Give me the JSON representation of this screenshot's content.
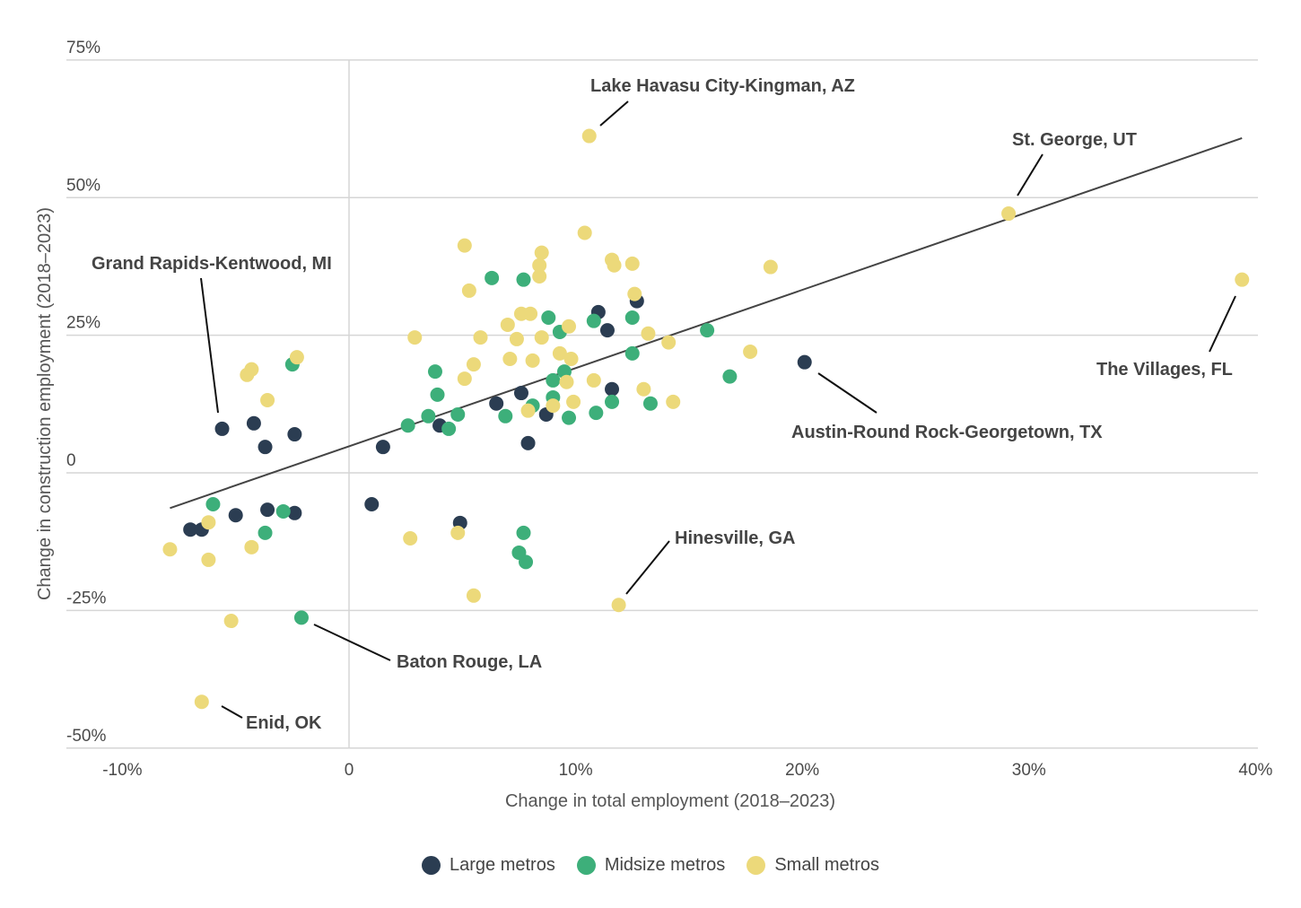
{
  "chart_data": {
    "type": "scatter",
    "title": "",
    "xlabel": "Change in total employment (2018–2023)",
    "ylabel": "Change in construction employment (2018–2023)",
    "xlim": [
      -10,
      40
    ],
    "ylim": [
      -50,
      75
    ],
    "x_ticks": [
      {
        "value": -10,
        "label": "-10%"
      },
      {
        "value": 0,
        "label": "0"
      },
      {
        "value": 10,
        "label": "10%"
      },
      {
        "value": 20,
        "label": "20%"
      },
      {
        "value": 30,
        "label": "30%"
      },
      {
        "value": 40,
        "label": "40%"
      }
    ],
    "y_ticks": [
      {
        "value": 75,
        "label": "75%"
      },
      {
        "value": 50,
        "label": "50%"
      },
      {
        "value": 25,
        "label": "25%"
      },
      {
        "value": 0,
        "label": "0"
      },
      {
        "value": -25,
        "label": "-25%"
      },
      {
        "value": -50,
        "label": "-50%"
      }
    ],
    "grid": "horizontal",
    "legend_position": "bottom-center",
    "series": [
      {
        "name": "Large metros",
        "color": "#2b3d52",
        "points": [
          [
            -5.6,
            8.0
          ],
          [
            -4.2,
            9.0
          ],
          [
            -3.7,
            4.7
          ],
          [
            -2.4,
            7.0
          ],
          [
            -7.0,
            -10.3
          ],
          [
            -6.5,
            -10.3
          ],
          [
            -5.0,
            -7.7
          ],
          [
            -3.6,
            -6.7
          ],
          [
            -2.4,
            -7.3
          ],
          [
            1.0,
            -5.7
          ],
          [
            1.5,
            4.7
          ],
          [
            4.0,
            8.6
          ],
          [
            4.9,
            -9.1
          ],
          [
            6.5,
            12.6
          ],
          [
            7.6,
            14.5
          ],
          [
            7.9,
            5.4
          ],
          [
            8.7,
            10.6
          ],
          [
            11.0,
            29.2
          ],
          [
            11.4,
            25.9
          ],
          [
            11.6,
            15.2
          ],
          [
            12.7,
            31.2
          ],
          [
            20.1,
            20.1
          ]
        ]
      },
      {
        "name": "Midsize metros",
        "color": "#3daf7a",
        "points": [
          [
            -6.0,
            -5.7
          ],
          [
            -2.5,
            19.7
          ],
          [
            -2.9,
            -7.0
          ],
          [
            -3.7,
            -10.9
          ],
          [
            -2.1,
            -26.3
          ],
          [
            2.6,
            8.6
          ],
          [
            3.5,
            10.3
          ],
          [
            3.9,
            14.2
          ],
          [
            3.8,
            18.4
          ],
          [
            4.4,
            8.0
          ],
          [
            4.8,
            10.6
          ],
          [
            6.3,
            35.4
          ],
          [
            6.9,
            10.3
          ],
          [
            7.7,
            35.1
          ],
          [
            7.7,
            -10.9
          ],
          [
            7.5,
            -14.5
          ],
          [
            7.8,
            -16.2
          ],
          [
            8.1,
            12.2
          ],
          [
            8.8,
            28.2
          ],
          [
            9.0,
            13.7
          ],
          [
            9.0,
            16.8
          ],
          [
            9.3,
            25.6
          ],
          [
            9.5,
            18.4
          ],
          [
            9.7,
            10.0
          ],
          [
            10.8,
            27.6
          ],
          [
            10.9,
            10.9
          ],
          [
            11.6,
            12.9
          ],
          [
            12.5,
            28.2
          ],
          [
            12.5,
            21.7
          ],
          [
            13.3,
            12.6
          ],
          [
            15.8,
            25.9
          ],
          [
            16.8,
            17.5
          ]
        ]
      },
      {
        "name": "Small metros",
        "color": "#ecd97a",
        "points": [
          [
            -7.9,
            -13.9
          ],
          [
            -6.2,
            -15.8
          ],
          [
            -6.2,
            -9.0
          ],
          [
            -5.2,
            -26.9
          ],
          [
            -4.3,
            -13.5
          ],
          [
            -6.5,
            -41.6
          ],
          [
            -4.5,
            17.8
          ],
          [
            -4.3,
            18.8
          ],
          [
            -3.6,
            13.2
          ],
          [
            -2.3,
            21.0
          ],
          [
            2.7,
            -11.9
          ],
          [
            2.9,
            24.6
          ],
          [
            4.8,
            -10.9
          ],
          [
            5.1,
            41.3
          ],
          [
            5.1,
            17.1
          ],
          [
            5.3,
            33.1
          ],
          [
            5.5,
            19.7
          ],
          [
            5.5,
            -22.3
          ],
          [
            5.8,
            24.6
          ],
          [
            7.0,
            26.9
          ],
          [
            7.1,
            20.7
          ],
          [
            7.4,
            24.3
          ],
          [
            7.6,
            28.9
          ],
          [
            8.0,
            28.9
          ],
          [
            7.9,
            11.3
          ],
          [
            8.1,
            20.4
          ],
          [
            8.4,
            37.7
          ],
          [
            8.5,
            40.0
          ],
          [
            8.4,
            35.7
          ],
          [
            8.5,
            24.6
          ],
          [
            9.0,
            12.2
          ],
          [
            9.3,
            21.7
          ],
          [
            9.6,
            16.5
          ],
          [
            9.8,
            20.7
          ],
          [
            9.7,
            26.6
          ],
          [
            9.9,
            12.9
          ],
          [
            10.4,
            43.6
          ],
          [
            10.6,
            61.2
          ],
          [
            10.8,
            16.8
          ],
          [
            11.6,
            38.7
          ],
          [
            11.7,
            37.7
          ],
          [
            11.9,
            -24.0
          ],
          [
            12.5,
            38.0
          ],
          [
            12.6,
            32.5
          ],
          [
            13.0,
            15.2
          ],
          [
            13.2,
            25.3
          ],
          [
            14.1,
            23.7
          ],
          [
            14.3,
            12.9
          ],
          [
            17.7,
            22.0
          ],
          [
            18.6,
            37.4
          ],
          [
            29.1,
            47.1
          ],
          [
            39.4,
            35.1
          ]
        ]
      }
    ],
    "trendline": {
      "from": [
        -7.9,
        -6.4
      ],
      "to": [
        39.4,
        60.8
      ]
    },
    "annotations": [
      {
        "label": "Lake Havasu City-Kingman, AZ",
        "point": [
          10.6,
          61.2
        ]
      },
      {
        "label": "St. George, UT",
        "point": [
          29.1,
          47.1
        ]
      },
      {
        "label": "Grand Rapids-Kentwood, MI",
        "point": [
          -5.6,
          8.0
        ]
      },
      {
        "label": "The Villages, FL",
        "point": [
          39.4,
          35.1
        ]
      },
      {
        "label": "Austin-Round Rock-Georgetown, TX",
        "point": [
          20.1,
          20.1
        ]
      },
      {
        "label": "Hinesville, GA",
        "point": [
          11.9,
          -24.0
        ]
      },
      {
        "label": "Baton Rouge, LA",
        "point": [
          -2.1,
          -26.3
        ]
      },
      {
        "label": "Enid, OK",
        "point": [
          -6.5,
          -41.6
        ]
      }
    ]
  },
  "legend": {
    "items": [
      {
        "label": "Large metros",
        "color": "#2b3d52"
      },
      {
        "label": "Midsize metros",
        "color": "#3daf7a"
      },
      {
        "label": "Small metros",
        "color": "#ecd97a"
      }
    ]
  }
}
